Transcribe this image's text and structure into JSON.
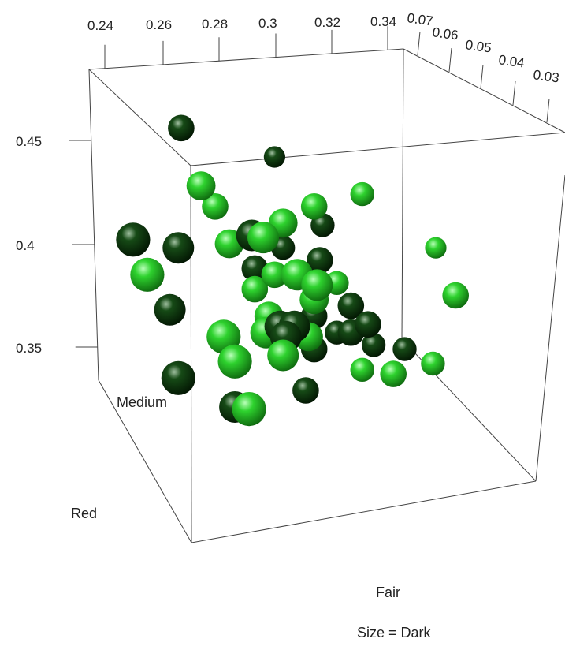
{
  "chart_data": {
    "type": "scatter",
    "projection": "3d",
    "x_axis": {
      "ticks": [
        "0.24",
        "0.26",
        "0.28",
        "0.3",
        "0.32",
        "0.34"
      ]
    },
    "depth_axis": {
      "ticks": [
        "0.07",
        "0.06",
        "0.05",
        "0.04",
        "0.03"
      ]
    },
    "y_axis": {
      "ticks": [
        "0.45",
        "0.4",
        "0.35"
      ]
    },
    "categories": [
      "Medium",
      "Red",
      "Fair"
    ],
    "size_note": "Size = Dark",
    "colors": {
      "light": "#22cc22",
      "dark": "#0c3d0c",
      "box": "#444444"
    },
    "points": [
      {
        "x": 0.267,
        "z": 0.05,
        "y": 0.456,
        "s": 0.8,
        "tone": "dark"
      },
      {
        "x": 0.3,
        "z": 0.05,
        "y": 0.442,
        "s": 0.6,
        "tone": "dark"
      },
      {
        "x": 0.274,
        "z": 0.05,
        "y": 0.428,
        "s": 0.9,
        "tone": "light"
      },
      {
        "x": 0.25,
        "z": 0.05,
        "y": 0.402,
        "s": 1.1,
        "tone": "dark"
      },
      {
        "x": 0.266,
        "z": 0.05,
        "y": 0.398,
        "s": 1.0,
        "tone": "dark"
      },
      {
        "x": 0.279,
        "z": 0.05,
        "y": 0.418,
        "s": 0.8,
        "tone": "light"
      },
      {
        "x": 0.284,
        "z": 0.05,
        "y": 0.4,
        "s": 0.9,
        "tone": "light"
      },
      {
        "x": 0.292,
        "z": 0.05,
        "y": 0.404,
        "s": 1.0,
        "tone": "dark"
      },
      {
        "x": 0.296,
        "z": 0.05,
        "y": 0.403,
        "s": 1.0,
        "tone": "light"
      },
      {
        "x": 0.303,
        "z": 0.05,
        "y": 0.41,
        "s": 0.9,
        "tone": "light"
      },
      {
        "x": 0.314,
        "z": 0.05,
        "y": 0.418,
        "s": 0.8,
        "tone": "light"
      },
      {
        "x": 0.331,
        "z": 0.05,
        "y": 0.424,
        "s": 0.7,
        "tone": "light"
      },
      {
        "x": 0.317,
        "z": 0.05,
        "y": 0.409,
        "s": 0.7,
        "tone": "dark"
      },
      {
        "x": 0.303,
        "z": 0.05,
        "y": 0.398,
        "s": 0.7,
        "tone": "dark"
      },
      {
        "x": 0.255,
        "z": 0.05,
        "y": 0.385,
        "s": 1.1,
        "tone": "light"
      },
      {
        "x": 0.263,
        "z": 0.05,
        "y": 0.368,
        "s": 1.0,
        "tone": "dark"
      },
      {
        "x": 0.293,
        "z": 0.05,
        "y": 0.388,
        "s": 0.8,
        "tone": "dark"
      },
      {
        "x": 0.293,
        "z": 0.05,
        "y": 0.378,
        "s": 0.8,
        "tone": "light"
      },
      {
        "x": 0.3,
        "z": 0.05,
        "y": 0.385,
        "s": 0.8,
        "tone": "light"
      },
      {
        "x": 0.308,
        "z": 0.05,
        "y": 0.385,
        "s": 1.0,
        "tone": "light"
      },
      {
        "x": 0.316,
        "z": 0.05,
        "y": 0.392,
        "s": 0.8,
        "tone": "dark"
      },
      {
        "x": 0.315,
        "z": 0.05,
        "y": 0.38,
        "s": 1.0,
        "tone": "light"
      },
      {
        "x": 0.314,
        "z": 0.05,
        "y": 0.373,
        "s": 0.9,
        "tone": "light"
      },
      {
        "x": 0.314,
        "z": 0.05,
        "y": 0.365,
        "s": 0.8,
        "tone": "dark"
      },
      {
        "x": 0.322,
        "z": 0.05,
        "y": 0.381,
        "s": 0.7,
        "tone": "light"
      },
      {
        "x": 0.327,
        "z": 0.05,
        "y": 0.37,
        "s": 0.8,
        "tone": "dark"
      },
      {
        "x": 0.298,
        "z": 0.05,
        "y": 0.365,
        "s": 0.9,
        "tone": "light"
      },
      {
        "x": 0.297,
        "z": 0.05,
        "y": 0.357,
        "s": 1.0,
        "tone": "light"
      },
      {
        "x": 0.302,
        "z": 0.05,
        "y": 0.36,
        "s": 1.0,
        "tone": "dark"
      },
      {
        "x": 0.307,
        "z": 0.05,
        "y": 0.36,
        "s": 1.0,
        "tone": "dark"
      },
      {
        "x": 0.304,
        "z": 0.05,
        "y": 0.355,
        "s": 1.0,
        "tone": "dark"
      },
      {
        "x": 0.312,
        "z": 0.05,
        "y": 0.355,
        "s": 0.9,
        "tone": "light"
      },
      {
        "x": 0.282,
        "z": 0.05,
        "y": 0.355,
        "s": 1.1,
        "tone": "light"
      },
      {
        "x": 0.286,
        "z": 0.05,
        "y": 0.343,
        "s": 1.1,
        "tone": "light"
      },
      {
        "x": 0.303,
        "z": 0.05,
        "y": 0.346,
        "s": 1.0,
        "tone": "light"
      },
      {
        "x": 0.314,
        "z": 0.05,
        "y": 0.349,
        "s": 0.8,
        "tone": "dark"
      },
      {
        "x": 0.322,
        "z": 0.05,
        "y": 0.357,
        "s": 0.7,
        "tone": "dark"
      },
      {
        "x": 0.327,
        "z": 0.05,
        "y": 0.357,
        "s": 0.8,
        "tone": "dark"
      },
      {
        "x": 0.333,
        "z": 0.05,
        "y": 0.361,
        "s": 0.8,
        "tone": "dark"
      },
      {
        "x": 0.335,
        "z": 0.05,
        "y": 0.351,
        "s": 0.7,
        "tone": "dark"
      },
      {
        "x": 0.331,
        "z": 0.05,
        "y": 0.339,
        "s": 0.7,
        "tone": "light"
      },
      {
        "x": 0.342,
        "z": 0.05,
        "y": 0.337,
        "s": 0.8,
        "tone": "light"
      },
      {
        "x": 0.346,
        "z": 0.05,
        "y": 0.349,
        "s": 0.7,
        "tone": "dark"
      },
      {
        "x": 0.356,
        "z": 0.05,
        "y": 0.342,
        "s": 0.7,
        "tone": "light"
      },
      {
        "x": 0.357,
        "z": 0.05,
        "y": 0.398,
        "s": 0.6,
        "tone": "light"
      },
      {
        "x": 0.364,
        "z": 0.05,
        "y": 0.375,
        "s": 0.8,
        "tone": "light"
      },
      {
        "x": 0.266,
        "z": 0.05,
        "y": 0.335,
        "s": 1.1,
        "tone": "dark"
      },
      {
        "x": 0.286,
        "z": 0.05,
        "y": 0.321,
        "s": 1.0,
        "tone": "dark"
      },
      {
        "x": 0.291,
        "z": 0.05,
        "y": 0.32,
        "s": 1.1,
        "tone": "light"
      },
      {
        "x": 0.311,
        "z": 0.05,
        "y": 0.329,
        "s": 0.8,
        "tone": "dark"
      }
    ]
  }
}
